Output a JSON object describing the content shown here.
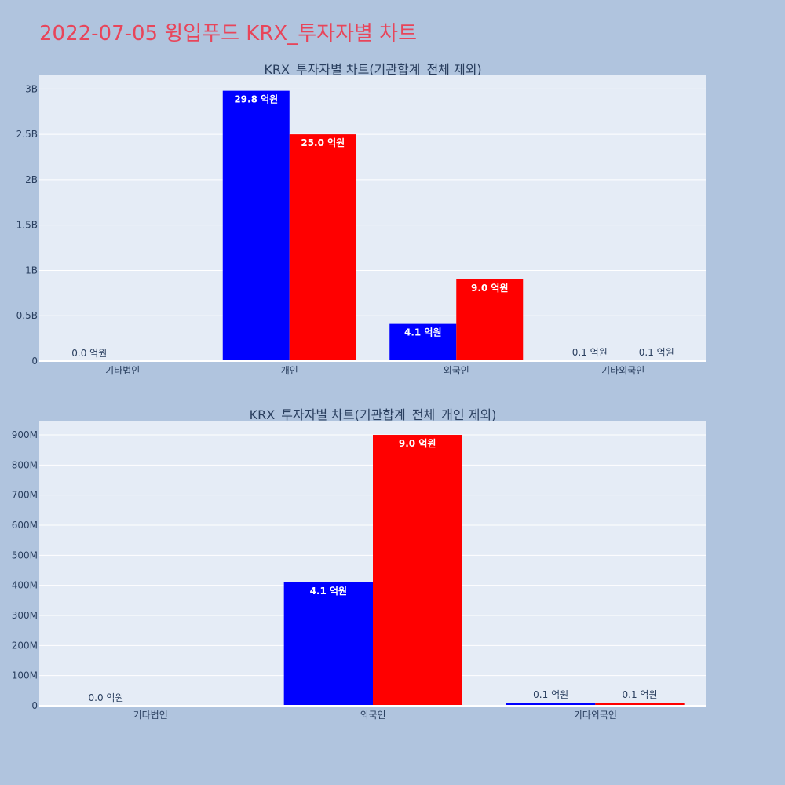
{
  "page_title": "2022-07-05 윙입푸드 KRX_투자자별 차트",
  "colors": {
    "buy": "#0000ff",
    "sell": "#ff0000",
    "title": "#e8455a"
  },
  "chart_data": [
    {
      "type": "bar",
      "title": "KRX_투자자별 차트(기관합계_전체 제외)",
      "categories": [
        "기타법인",
        "개인",
        "외국인",
        "기타외국인"
      ],
      "series": [
        {
          "values": [
            0,
            2980000000,
            410000000,
            10000000
          ],
          "labels": [
            "0.0 억원",
            "29.8 억원",
            "4.1 억원",
            "0.1 억원"
          ]
        },
        {
          "values": [
            0,
            2500000000,
            900000000,
            10000000
          ],
          "labels": [
            "",
            "25.0 억원",
            "9.0 억원",
            "0.1 억원"
          ]
        }
      ],
      "yticks": [
        0,
        500000000,
        1000000000,
        1500000000,
        2000000000,
        2500000000,
        3000000000
      ],
      "ytick_labels": [
        "0",
        "0.5B",
        "1B",
        "1.5B",
        "2B",
        "2.5B",
        "3B"
      ],
      "ylim": [
        0,
        3150000000
      ]
    },
    {
      "type": "bar",
      "title": "KRX_투자자별 차트(기관합계_전체_개인 제외)",
      "categories": [
        "기타법인",
        "외국인",
        "기타외국인"
      ],
      "series": [
        {
          "values": [
            0,
            410000000,
            10000000
          ],
          "labels": [
            "0.0 억원",
            "4.1 억원",
            "0.1 억원"
          ]
        },
        {
          "values": [
            0,
            900000000,
            10000000
          ],
          "labels": [
            "",
            "9.0 억원",
            "0.1 억원"
          ]
        }
      ],
      "yticks": [
        0,
        100000000,
        200000000,
        300000000,
        400000000,
        500000000,
        600000000,
        700000000,
        800000000,
        900000000
      ],
      "ytick_labels": [
        "0",
        "100M",
        "200M",
        "300M",
        "400M",
        "500M",
        "600M",
        "700M",
        "800M",
        "900M"
      ],
      "ylim": [
        0,
        947000000
      ]
    }
  ]
}
